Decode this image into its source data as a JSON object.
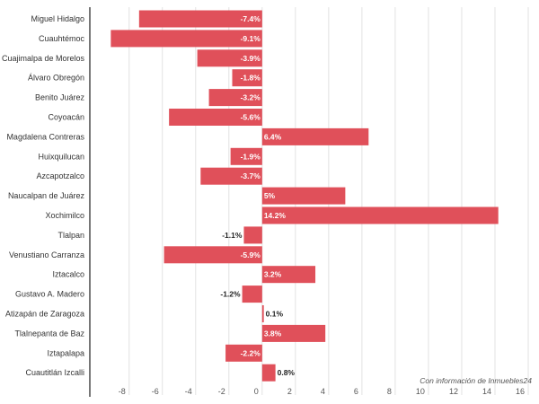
{
  "chart_data": {
    "type": "bar",
    "orientation": "horizontal",
    "categories": [
      "Miguel Hidalgo",
      "Cuauhtémoc",
      "Cuajimalpa de Morelos",
      "Álvaro Obregón",
      "Benito Juárez",
      "Coyoacán",
      "Magdalena Contreras",
      "Huixquilucan",
      "Azcapotzalco",
      "Naucalpan de Juárez",
      "Xochimilco",
      "Tlalpan",
      "Venustiano Carranza",
      "Iztacalco",
      "Gustavo A. Madero",
      "Atizapán de Zaragoza",
      "Tlalnepanta de Baz",
      "Iztapalapa",
      "Cuautitlán Izcalli"
    ],
    "values": [
      -7.4,
      -9.1,
      -3.9,
      -1.8,
      -3.2,
      -5.6,
      6.4,
      -1.9,
      -3.7,
      5,
      14.2,
      -1.1,
      -5.9,
      3.2,
      -1.2,
      0.1,
      3.8,
      -2.2,
      0.8
    ],
    "labels": [
      "-7.4%",
      "-9.1%",
      "-3.9%",
      "-1.8%",
      "-3.2%",
      "-5.6%",
      "6.4%",
      "-1.9%",
      "-3.7%",
      "5%",
      "14.2%",
      "-1.1%",
      "-5.9%",
      "3.2%",
      "-1.2%",
      "0.1%",
      "3.8%",
      "-2.2%",
      "0.8%"
    ],
    "xticks": [
      "-8",
      "-6",
      "-4",
      "-2",
      "0",
      "2",
      "4",
      "6",
      "8",
      "10",
      "12",
      "14",
      "16"
    ],
    "xlim": [
      -10,
      16
    ],
    "grid": true,
    "bar_color": "#e0505a",
    "source": "Con información de Inmuebles24"
  }
}
